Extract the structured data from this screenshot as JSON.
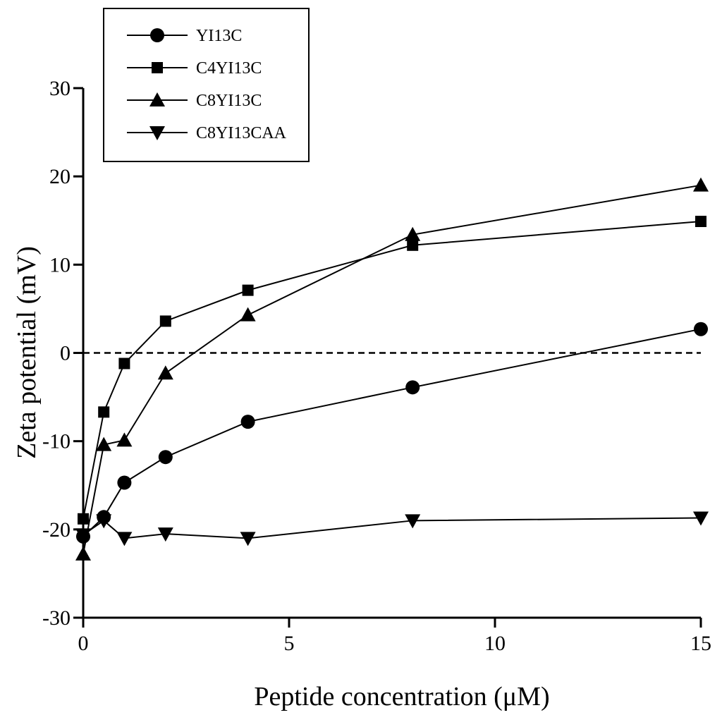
{
  "chart_data": {
    "type": "line",
    "title": "",
    "xlabel": "Peptide concentration (μM)",
    "ylabel": "Zeta potential (mV)",
    "xlim": [
      0,
      15
    ],
    "ylim": [
      -30,
      30
    ],
    "xticks": [
      0,
      5,
      10,
      15
    ],
    "yticks": [
      -30,
      -20,
      -10,
      0,
      10,
      20,
      30
    ],
    "grid": false,
    "reference_line": {
      "y": 0,
      "style": "dashed"
    },
    "legend_position": "top-left",
    "x": [
      0,
      0.5,
      1,
      2,
      4,
      8,
      15
    ],
    "series": [
      {
        "name": "YI13C",
        "marker": "circle",
        "values": [
          -20.8,
          -18.6,
          -14.7,
          -11.8,
          -7.8,
          -3.9,
          2.7
        ]
      },
      {
        "name": "C4YI13C",
        "marker": "square",
        "values": [
          -18.8,
          -6.7,
          -1.2,
          3.6,
          7.1,
          12.2,
          14.9
        ]
      },
      {
        "name": "C8YI13C",
        "marker": "triangle-up",
        "values": [
          -22.8,
          -10.4,
          -9.9,
          -2.3,
          4.3,
          13.4,
          19.0
        ]
      },
      {
        "name": "C8YI13CAA",
        "marker": "triangle-down",
        "values": [
          -20.6,
          -19.0,
          -21.0,
          -20.5,
          -21.0,
          -19.0,
          -18.7
        ]
      }
    ]
  }
}
